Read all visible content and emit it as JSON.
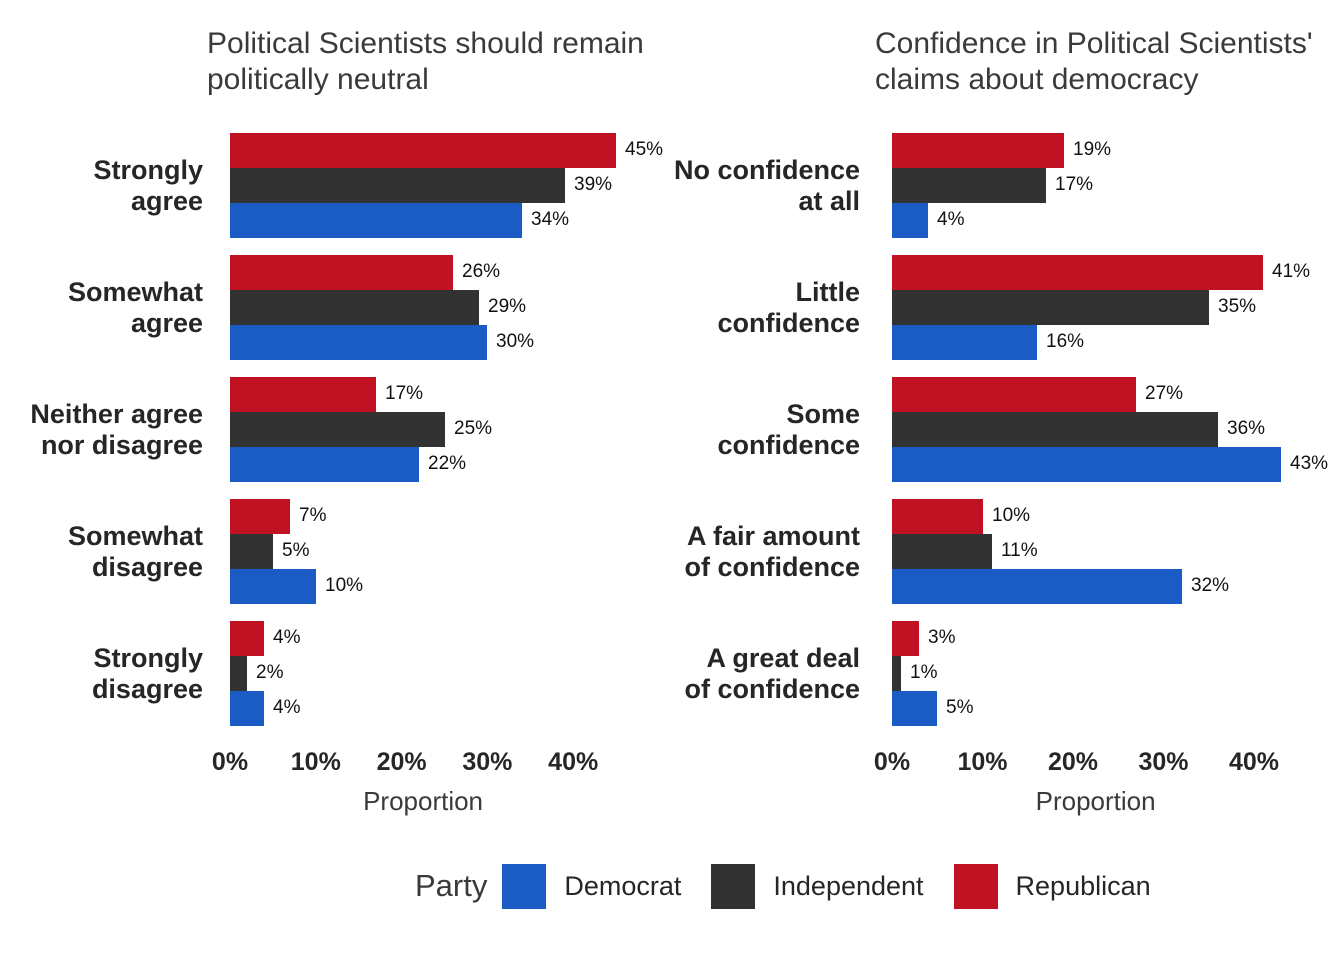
{
  "legend": {
    "title": "Party",
    "entries": [
      {
        "label": "Democrat",
        "color": "#1A5CC4"
      },
      {
        "label": "Independent",
        "color": "#323232"
      },
      {
        "label": "Republican",
        "color": "#C01223"
      }
    ]
  },
  "colors": {
    "democrat": "#1A5CC4",
    "independent": "#323232",
    "republican": "#C01223",
    "title_text": "#3a3a3a",
    "label_text": "#262626",
    "value_text": "#111111",
    "background": "#ffffff"
  },
  "chart_data": [
    {
      "type": "bar",
      "orientation": "horizontal",
      "title": "Political Scientists should remain politically neutral",
      "title_lines": [
        "Political Scientists should remain",
        "politically neutral"
      ],
      "xlabel": "Proportion",
      "x_tick_labels": [
        "0%",
        "10%",
        "20%",
        "30%",
        "40%"
      ],
      "x_tick_values": [
        0,
        10,
        20,
        30,
        40
      ],
      "xlim": [
        0,
        47
      ],
      "grid": false,
      "legend_position": "bottom",
      "categories": [
        "Strongly agree",
        "Somewhat agree",
        "Neither agree nor disagree",
        "Somewhat disagree",
        "Strongly disagree"
      ],
      "category_lines": [
        [
          "Strongly",
          "agree"
        ],
        [
          "Somewhat",
          "agree"
        ],
        [
          "Neither agree",
          "nor disagree"
        ],
        [
          "Somewhat",
          "disagree"
        ],
        [
          "Strongly",
          "disagree"
        ]
      ],
      "series": [
        {
          "name": "Republican",
          "color": "#C01223",
          "values": [
            45,
            26,
            17,
            7,
            4
          ]
        },
        {
          "name": "Independent",
          "color": "#323232",
          "values": [
            39,
            29,
            25,
            5,
            2
          ]
        },
        {
          "name": "Democrat",
          "color": "#1A5CC4",
          "values": [
            34,
            30,
            22,
            10,
            4
          ]
        }
      ],
      "value_label_format": "{v}%"
    },
    {
      "type": "bar",
      "orientation": "horizontal",
      "title": "Confidence in Political Scientists' claims about democracy",
      "title_lines": [
        "Confidence in Political Scientists'",
        "claims about democracy"
      ],
      "xlabel": "Proportion",
      "x_tick_labels": [
        "0%",
        "10%",
        "20%",
        "30%",
        "40%"
      ],
      "x_tick_values": [
        0,
        10,
        20,
        30,
        40
      ],
      "xlim": [
        0,
        47
      ],
      "grid": false,
      "legend_position": "bottom",
      "categories": [
        "No confidence at all",
        "Little confidence",
        "Some confidence",
        "A fair amount of confidence",
        "A great deal of confidence"
      ],
      "category_lines": [
        [
          "No confidence",
          "at all"
        ],
        [
          "Little",
          "confidence"
        ],
        [
          "Some",
          "confidence"
        ],
        [
          "A fair amount",
          "of confidence"
        ],
        [
          "A great deal",
          "of confidence"
        ]
      ],
      "series": [
        {
          "name": "Republican",
          "color": "#C01223",
          "values": [
            19,
            41,
            27,
            10,
            3
          ]
        },
        {
          "name": "Independent",
          "color": "#323232",
          "values": [
            17,
            35,
            36,
            11,
            1
          ]
        },
        {
          "name": "Democrat",
          "color": "#1A5CC4",
          "values": [
            4,
            16,
            43,
            32,
            5
          ]
        }
      ],
      "value_label_format": "{v}%"
    }
  ]
}
